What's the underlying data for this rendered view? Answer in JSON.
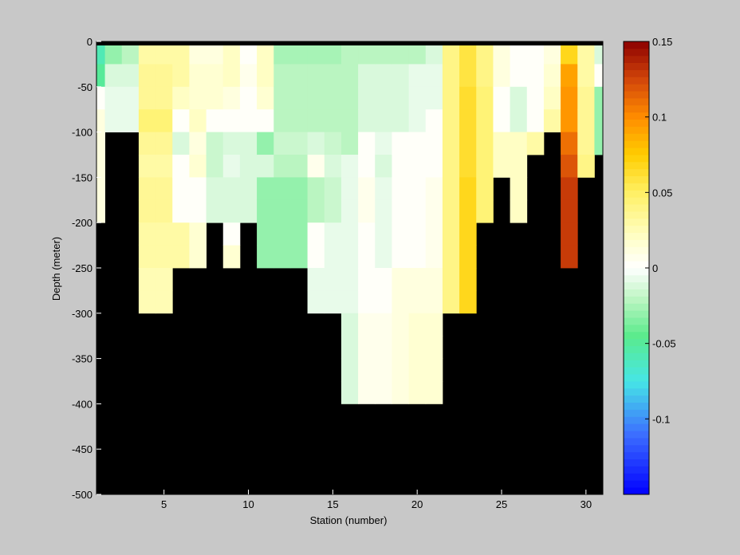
{
  "chart_data": {
    "type": "heatmap",
    "title": "",
    "xlabel": "Station (number)",
    "ylabel": "Depth (meter)",
    "xlim": [
      1,
      31
    ],
    "ylim": [
      -500,
      0
    ],
    "xticks": [
      5,
      10,
      15,
      20,
      25,
      30
    ],
    "yticks": [
      0,
      -50,
      -100,
      -150,
      -200,
      -250,
      -300,
      -350,
      -400,
      -450,
      -500
    ],
    "background_color": "#000000",
    "colorbar": {
      "clim": [
        -0.15,
        0.15
      ],
      "ticks": [
        0.15,
        0.1,
        0.05,
        0,
        -0.05,
        -0.1
      ],
      "tick_labels": [
        "0.15",
        "0.1",
        "0.05",
        "0",
        "-0.05",
        "-0.1"
      ],
      "levels": 64,
      "colormap": "blue-cyan-green-white-yellow-orange-darkred"
    },
    "stations": [
      1,
      2,
      3,
      4,
      5,
      6,
      7,
      8,
      9,
      10,
      11,
      12,
      13,
      14,
      15,
      16,
      17,
      18,
      19,
      20,
      21,
      22,
      23,
      24,
      25,
      26,
      27,
      28,
      29,
      30,
      31
    ],
    "depth_levels": [
      -12.5,
      -37.5,
      -62.5,
      -87.5,
      -112.5,
      -137.5,
      -162.5,
      -187.5,
      -212.5,
      -237.5,
      -262.5,
      -287.5,
      -312.5,
      -337.5,
      -362.5,
      -387.5
    ],
    "columns": [
      {
        "station": 1,
        "bottom": -200,
        "values": [
          -0.06,
          -0.05,
          0.0,
          0.01,
          0.01,
          0.01,
          0.01,
          0.01
        ]
      },
      {
        "station": 2,
        "bottom": -100,
        "values": [
          -0.03,
          -0.01,
          -0.005,
          -0.005
        ]
      },
      {
        "station": 3,
        "bottom": -100,
        "values": [
          -0.02,
          -0.01,
          -0.005,
          -0.005
        ]
      },
      {
        "station": 4,
        "bottom": -300,
        "values": [
          0.03,
          0.035,
          0.035,
          0.045,
          0.035,
          0.03,
          0.035,
          0.035,
          0.03,
          0.03,
          0.025,
          0.025
        ]
      },
      {
        "station": 5,
        "bottom": -300,
        "values": [
          0.03,
          0.035,
          0.035,
          0.045,
          0.035,
          0.03,
          0.035,
          0.035,
          0.03,
          0.03,
          0.025,
          0.025
        ]
      },
      {
        "station": 6,
        "bottom": -250,
        "values": [
          0.03,
          0.03,
          0.02,
          0.0,
          -0.01,
          0.0,
          0.0,
          0.0,
          0.03,
          0.03
        ]
      },
      {
        "station": 7,
        "bottom": -250,
        "values": [
          0.01,
          0.015,
          0.015,
          0.02,
          0.01,
          0.015,
          0.0,
          0.0,
          0.015,
          0.015
        ]
      },
      {
        "station": 8,
        "bottom": -200,
        "values": [
          0.01,
          0.015,
          0.015,
          0.0,
          -0.015,
          -0.015,
          -0.01,
          -0.01
        ]
      },
      {
        "station": 9,
        "bottom": -250,
        "values": [
          0.02,
          0.02,
          0.01,
          0.0,
          -0.01,
          -0.005,
          -0.01,
          -0.01,
          0.0,
          0.015
        ]
      },
      {
        "station": 10,
        "bottom": -200,
        "values": [
          0.0,
          0.005,
          0.0,
          0.0,
          -0.01,
          -0.01,
          -0.01,
          -0.01
        ]
      },
      {
        "station": 11,
        "bottom": -250,
        "values": [
          0.02,
          0.02,
          0.015,
          0.0,
          -0.03,
          -0.01,
          -0.03,
          -0.03,
          -0.03,
          -0.03
        ]
      },
      {
        "station": 12,
        "bottom": -250,
        "values": [
          -0.025,
          -0.02,
          -0.02,
          -0.02,
          -0.015,
          -0.02,
          -0.03,
          -0.03,
          -0.03,
          -0.03
        ]
      },
      {
        "station": 13,
        "bottom": -250,
        "values": [
          -0.025,
          -0.02,
          -0.02,
          -0.02,
          -0.015,
          -0.02,
          -0.03,
          -0.03,
          -0.03,
          -0.03
        ]
      },
      {
        "station": 14,
        "bottom": -300,
        "values": [
          -0.025,
          -0.02,
          -0.02,
          -0.02,
          -0.01,
          0.005,
          -0.02,
          -0.02,
          0.0,
          0.0,
          -0.005,
          -0.005
        ]
      },
      {
        "station": 15,
        "bottom": -300,
        "values": [
          -0.025,
          -0.02,
          -0.02,
          -0.02,
          -0.015,
          -0.01,
          -0.015,
          -0.015,
          -0.005,
          -0.005,
          -0.005,
          -0.005
        ]
      },
      {
        "station": 16,
        "bottom": -400,
        "values": [
          -0.02,
          -0.02,
          -0.02,
          -0.02,
          -0.02,
          -0.005,
          -0.005,
          -0.005,
          -0.005,
          -0.005,
          -0.005,
          -0.005,
          -0.01,
          -0.01,
          -0.01,
          -0.01
        ]
      },
      {
        "station": 17,
        "bottom": -400,
        "values": [
          -0.02,
          -0.01,
          -0.01,
          -0.01,
          0.0,
          0.0,
          0.005,
          0.005,
          0.0,
          0.0,
          0.0,
          0.0,
          0.005,
          0.005,
          0.005,
          0.005
        ]
      },
      {
        "station": 18,
        "bottom": -400,
        "values": [
          -0.02,
          -0.01,
          -0.01,
          -0.01,
          -0.005,
          -0.01,
          -0.005,
          -0.005,
          -0.005,
          -0.005,
          0.0,
          0.0,
          0.005,
          0.005,
          0.005,
          0.005
        ]
      },
      {
        "station": 19,
        "bottom": -400,
        "values": [
          -0.02,
          -0.01,
          -0.01,
          -0.01,
          0.0,
          0.0,
          0.0,
          0.0,
          0.0,
          0.0,
          0.01,
          0.01,
          0.01,
          0.01,
          0.01,
          0.01
        ]
      },
      {
        "station": 20,
        "bottom": -400,
        "values": [
          -0.02,
          -0.005,
          -0.005,
          -0.005,
          0.0,
          0.0,
          0.0,
          0.0,
          0.0,
          0.0,
          0.01,
          0.01,
          0.015,
          0.015,
          0.015,
          0.015
        ]
      },
      {
        "station": 21,
        "bottom": -400,
        "values": [
          -0.01,
          -0.005,
          -0.005,
          0.0,
          0.0,
          0.0,
          0.005,
          0.005,
          0.005,
          0.005,
          0.01,
          0.01,
          0.015,
          0.015,
          0.015,
          0.015
        ]
      },
      {
        "station": 22,
        "bottom": -300,
        "values": [
          0.04,
          0.04,
          0.04,
          0.04,
          0.04,
          0.04,
          0.04,
          0.04,
          0.04,
          0.04,
          0.04,
          0.04
        ]
      },
      {
        "station": 23,
        "bottom": -300,
        "values": [
          0.06,
          0.06,
          0.065,
          0.065,
          0.065,
          0.065,
          0.07,
          0.07,
          0.07,
          0.07,
          0.07,
          0.07
        ]
      },
      {
        "station": 24,
        "bottom": -200,
        "values": [
          0.04,
          0.04,
          0.045,
          0.045,
          0.045,
          0.045,
          0.045,
          0.045
        ]
      },
      {
        "station": 25,
        "bottom": -150,
        "values": [
          0.01,
          0.01,
          0.0,
          0.0,
          0.02,
          0.02
        ]
      },
      {
        "station": 26,
        "bottom": -200,
        "values": [
          0.0,
          0.0,
          -0.01,
          -0.01,
          0.02,
          0.02,
          0.02,
          0.02
        ]
      },
      {
        "station": 27,
        "bottom": -125,
        "values": [
          0.0,
          0.0,
          0.0,
          0.0,
          0.03
        ]
      },
      {
        "station": 28,
        "bottom": -100,
        "values": [
          0.01,
          0.015,
          0.02,
          0.03
        ]
      },
      {
        "station": 29,
        "bottom": -250,
        "values": [
          0.07,
          0.09,
          0.095,
          0.095,
          0.11,
          0.12,
          0.13,
          0.13,
          0.13,
          0.13
        ]
      },
      {
        "station": 30,
        "bottom": -150,
        "values": [
          0.03,
          0.03,
          0.035,
          0.035,
          0.035,
          0.04
        ]
      },
      {
        "station": 31,
        "bottom": -125,
        "values": [
          -0.01,
          0.0,
          -0.03,
          -0.03,
          -0.03
        ]
      }
    ]
  }
}
